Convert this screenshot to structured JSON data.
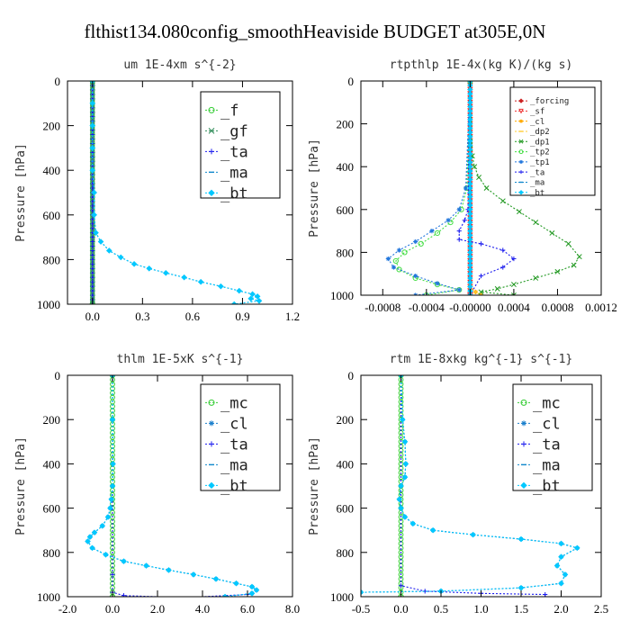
{
  "figure": {
    "title": "flthist134.080config_smoothHeaviside  BUDGET at305E,0N"
  },
  "colors": {
    "_f": "#33cc33",
    "_gf": "#2e8b57",
    "_ta": "#1a1aee",
    "_ma": "#1188cc",
    "_bt": "#00c8ff",
    "_forcing": "#cc2222",
    "_sf": "#ee3333",
    "_cl_orange": "#ffaa00",
    "_dp2": "#ffcc33",
    "_dp1": "#229922",
    "_tp2": "#44dd44",
    "_tp1": "#2277dd",
    "_mc": "#33cc33",
    "_cl": "#1a7fcc"
  },
  "chart_data": [
    {
      "type": "line",
      "title": "um   1E-4xm s^{-2}",
      "xlabel": "",
      "ylabel": "Pressure [hPa]",
      "xlim": [
        -0.15,
        1.2
      ],
      "ylim": [
        1000,
        0
      ],
      "xticks": [
        0.0,
        0.3,
        0.6,
        0.9,
        1.2
      ],
      "xtick_labels": [
        "0.0",
        "0.3",
        "0.6",
        "0.9",
        "1.2"
      ],
      "yticks": [
        0,
        200,
        400,
        600,
        800,
        1000
      ],
      "ytick_labels": [
        "0",
        "200",
        "400",
        "600",
        "800",
        "1000"
      ],
      "legend": {
        "position": "top-right",
        "font_size": 17,
        "entries": [
          "_f",
          "_gf",
          "_ta",
          "_ma",
          "_bt"
        ]
      },
      "series": [
        {
          "name": "_f",
          "x": [
            0,
            0
          ],
          "y": [
            0,
            1000
          ]
        },
        {
          "name": "_gf",
          "x": [
            0,
            0
          ],
          "y": [
            0,
            1000
          ]
        },
        {
          "name": "_ta",
          "x": [
            0,
            0
          ],
          "y": [
            0,
            1000
          ]
        },
        {
          "name": "_ma",
          "x": [
            0.0,
            0.0,
            0.0,
            0.0,
            0.0,
            0.01,
            0.01,
            0.02,
            0.05,
            0.1,
            0.17,
            0.25,
            0.34,
            0.44,
            0.55,
            0.65,
            0.77,
            0.88,
            0.96,
            0.99,
            0.95,
            1.0,
            0.85
          ],
          "y": [
            0,
            100,
            200,
            300,
            400,
            500,
            600,
            680,
            720,
            760,
            790,
            820,
            840,
            860,
            880,
            900,
            920,
            940,
            955,
            965,
            975,
            985,
            1000
          ]
        },
        {
          "name": "_bt",
          "x": [
            0.0,
            0.0,
            0.0,
            0.0,
            0.0,
            0.01,
            0.01,
            0.02,
            0.05,
            0.1,
            0.17,
            0.25,
            0.34,
            0.44,
            0.55,
            0.65,
            0.77,
            0.88,
            0.96,
            0.99,
            0.95,
            1.0,
            0.85
          ],
          "y": [
            0,
            100,
            200,
            300,
            400,
            500,
            600,
            680,
            720,
            760,
            790,
            820,
            840,
            860,
            880,
            900,
            920,
            940,
            955,
            965,
            975,
            985,
            1000
          ]
        }
      ]
    },
    {
      "type": "line",
      "title": "rtpthlp   1E-4x(kg K)/(kg s)",
      "xlabel": "",
      "ylabel": "Pressure [hPa]",
      "xlim": [
        -0.001,
        0.0012
      ],
      "ylim": [
        1000,
        0
      ],
      "xticks": [
        -0.0008,
        -0.0004,
        0.0,
        0.0004,
        0.0008,
        0.0012
      ],
      "xtick_labels": [
        "-0.0008",
        "-0.0004",
        "-0.00000",
        "0.0004",
        "0.0008",
        "0.0012"
      ],
      "yticks": [
        0,
        200,
        400,
        600,
        800,
        1000
      ],
      "ytick_labels": [
        "0",
        "200",
        "400",
        "600",
        "800",
        "1000"
      ],
      "legend": {
        "position": "top-right",
        "font_size": 9,
        "entries": [
          "_forcing",
          "_sf",
          "_cl",
          "_dp2",
          "_dp1",
          "_tp2",
          "_tp1",
          "_ta",
          "_ma",
          "_bt"
        ]
      },
      "series": [
        {
          "name": "_forcing",
          "x": [
            0,
            0
          ],
          "y": [
            0,
            1000
          ]
        },
        {
          "name": "_sf",
          "x": [
            0,
            0
          ],
          "y": [
            0,
            1000
          ]
        },
        {
          "name": "_cl",
          "x": [
            0,
            0,
            5e-05,
            0.0001
          ],
          "y": [
            0,
            960,
            985,
            1000
          ]
        },
        {
          "name": "_dp2",
          "x": [
            0,
            0,
            5e-05,
            0.0001
          ],
          "y": [
            0,
            960,
            985,
            1000
          ]
        },
        {
          "name": "_dp1",
          "x": [
            0.0,
            2e-05,
            4e-05,
            8e-05,
            0.00015,
            0.0003,
            0.00045,
            0.0006,
            0.00075,
            0.0009,
            0.001,
            0.00095,
            0.0008,
            0.0006,
            0.0004,
            0.00025,
            0.0001,
            0.0004
          ],
          "y": [
            0,
            350,
            400,
            450,
            500,
            560,
            610,
            660,
            710,
            760,
            820,
            860,
            890,
            920,
            950,
            970,
            985,
            1000
          ]
        },
        {
          "name": "_tp2",
          "x": [
            0.0,
            -3e-05,
            -8e-05,
            -0.00018,
            -0.0003,
            -0.00045,
            -0.0006,
            -0.00068,
            -0.00065,
            -0.0005,
            -0.0003,
            -0.0001,
            -0.0004
          ],
          "y": [
            0,
            500,
            600,
            660,
            710,
            760,
            800,
            840,
            880,
            920,
            950,
            975,
            1000
          ]
        },
        {
          "name": "_tp1",
          "x": [
            0.0,
            -4e-05,
            -0.0001,
            -0.0002,
            -0.00035,
            -0.0005,
            -0.00065,
            -0.00075,
            -0.0007,
            -0.0005,
            -0.0003,
            -0.0001,
            -0.0005
          ],
          "y": [
            0,
            500,
            600,
            650,
            700,
            750,
            790,
            830,
            870,
            910,
            945,
            975,
            1000
          ]
        },
        {
          "name": "_ta",
          "x": [
            0.0,
            -2e-05,
            -5e-05,
            -0.0001,
            -0.0001,
            0.0001,
            0.0003,
            0.0004,
            0.0003,
            0.0001,
            0.0
          ],
          "y": [
            0,
            600,
            650,
            700,
            740,
            760,
            790,
            830,
            870,
            910,
            1000
          ]
        },
        {
          "name": "_ma",
          "x": [
            0,
            0
          ],
          "y": [
            0,
            1000
          ]
        },
        {
          "name": "_bt",
          "x": [
            0,
            0
          ],
          "y": [
            0,
            1000
          ]
        }
      ]
    },
    {
      "type": "line",
      "title": "thlm   1E-5xK s^{-1}",
      "xlabel": "",
      "ylabel": "Pressure [hPa]",
      "xlim": [
        -2.0,
        8.0
      ],
      "ylim": [
        1000,
        0
      ],
      "xticks": [
        -2.0,
        0.0,
        2.0,
        4.0,
        6.0,
        8.0
      ],
      "xtick_labels": [
        "-2.0",
        "0.0",
        "2.0",
        "4.0",
        "6.0",
        "8.0"
      ],
      "yticks": [
        0,
        200,
        400,
        600,
        800,
        1000
      ],
      "ytick_labels": [
        "0",
        "200",
        "400",
        "600",
        "800",
        "1000"
      ],
      "legend": {
        "position": "top-right",
        "font_size": 17,
        "entries": [
          "_mc",
          "_cl",
          "_ta",
          "_ma",
          "_bt"
        ]
      },
      "series": [
        {
          "name": "_mc",
          "x": [
            0,
            0
          ],
          "y": [
            0,
            1000
          ]
        },
        {
          "name": "_cl",
          "x": [
            0.0,
            0.0,
            0.02,
            0.0,
            -0.05,
            -0.1,
            -0.2,
            -0.45,
            -0.8,
            -1.0,
            -1.1,
            -0.9,
            -0.3,
            0.5,
            1.5,
            2.5,
            3.6,
            4.6,
            5.5,
            6.2,
            6.4,
            6.2,
            5.0
          ],
          "y": [
            0,
            200,
            400,
            500,
            560,
            600,
            640,
            680,
            710,
            730,
            750,
            780,
            810,
            840,
            860,
            880,
            900,
            920,
            940,
            955,
            970,
            985,
            1000
          ]
        },
        {
          "name": "_ta",
          "x": [
            0.0,
            0.0,
            0.0,
            0.5,
            2.0,
            4.0,
            6.0
          ],
          "y": [
            0,
            900,
            980,
            995,
            1000,
            1000,
            990
          ]
        },
        {
          "name": "_ma",
          "x": [
            0.0,
            0.0,
            0.02,
            0.0,
            -0.05,
            -0.1,
            -0.2,
            -0.45,
            -0.8,
            -1.0,
            -1.1,
            -0.9,
            -0.3,
            0.5,
            1.5,
            2.5,
            3.6,
            4.6,
            5.5,
            6.2,
            6.4,
            6.2,
            5.0
          ],
          "y": [
            0,
            200,
            400,
            500,
            560,
            600,
            640,
            680,
            710,
            730,
            750,
            780,
            810,
            840,
            860,
            880,
            900,
            920,
            940,
            955,
            970,
            985,
            1000
          ]
        },
        {
          "name": "_bt",
          "x": [
            0.0,
            0.0,
            0.02,
            0.0,
            -0.05,
            -0.1,
            -0.2,
            -0.45,
            -0.8,
            -1.0,
            -1.1,
            -0.9,
            -0.3,
            0.5,
            1.5,
            2.5,
            3.6,
            4.6,
            5.5,
            6.2,
            6.4,
            6.2,
            5.0
          ],
          "y": [
            0,
            200,
            400,
            500,
            560,
            600,
            640,
            680,
            710,
            730,
            750,
            780,
            810,
            840,
            860,
            880,
            900,
            920,
            940,
            955,
            970,
            985,
            1000
          ]
        }
      ]
    },
    {
      "type": "line",
      "title": "rtm   1E-8xkg kg^{-1} s^{-1}",
      "xlabel": "",
      "ylabel": "Pressure [hPa]",
      "xlim": [
        -0.5,
        2.5
      ],
      "ylim": [
        1000,
        0
      ],
      "xticks": [
        -0.5,
        0.0,
        0.5,
        1.0,
        1.5,
        2.0,
        2.5
      ],
      "xtick_labels": [
        "-0.5",
        "0.0",
        "0.5",
        "1.0",
        "1.5",
        "2.0",
        "2.5"
      ],
      "yticks": [
        0,
        200,
        400,
        600,
        800,
        1000
      ],
      "ytick_labels": [
        "0",
        "200",
        "400",
        "600",
        "800",
        "1000"
      ],
      "legend": {
        "position": "top-right",
        "font_size": 17,
        "entries": [
          "_mc",
          "_cl",
          "_ta",
          "_ma",
          "_bt"
        ]
      },
      "series": [
        {
          "name": "_mc",
          "x": [
            0,
            0
          ],
          "y": [
            0,
            1000
          ]
        },
        {
          "name": "_cl",
          "x": [
            0.0,
            0.02,
            0.05,
            0.06,
            0.05,
            0.0,
            -0.02,
            0.0,
            0.05,
            0.15,
            0.4,
            0.9,
            1.5,
            2.0,
            2.2,
            2.0,
            1.95,
            2.05,
            2.0,
            1.5,
            0.5,
            -0.5
          ],
          "y": [
            0,
            200,
            300,
            400,
            460,
            500,
            560,
            600,
            640,
            670,
            700,
            720,
            740,
            760,
            780,
            820,
            860,
            900,
            940,
            960,
            975,
            980
          ]
        },
        {
          "name": "_ta",
          "x": [
            0.0,
            0.0,
            0.3,
            1.0,
            1.8,
            1.8
          ],
          "y": [
            0,
            950,
            975,
            985,
            990,
            1000
          ]
        },
        {
          "name": "_ma",
          "x": [
            0.0,
            0.02,
            0.05,
            0.06,
            0.05,
            0.0,
            -0.02,
            0.0,
            0.05,
            0.15,
            0.4,
            0.9,
            1.5,
            2.0,
            2.2,
            2.0,
            1.95,
            2.05,
            2.0,
            1.5,
            0.5,
            -0.5
          ],
          "y": [
            0,
            200,
            300,
            400,
            460,
            500,
            560,
            600,
            640,
            670,
            700,
            720,
            740,
            760,
            780,
            820,
            860,
            900,
            940,
            960,
            975,
            980
          ]
        },
        {
          "name": "_bt",
          "x": [
            0.0,
            0.02,
            0.05,
            0.06,
            0.05,
            0.0,
            -0.02,
            0.0,
            0.05,
            0.15,
            0.4,
            0.9,
            1.5,
            2.0,
            2.2,
            2.0,
            1.95,
            2.05,
            2.0,
            1.5,
            0.5,
            -0.5
          ],
          "y": [
            0,
            200,
            300,
            400,
            460,
            500,
            560,
            600,
            640,
            670,
            700,
            720,
            740,
            760,
            780,
            820,
            860,
            900,
            940,
            960,
            975,
            980
          ]
        }
      ]
    }
  ]
}
